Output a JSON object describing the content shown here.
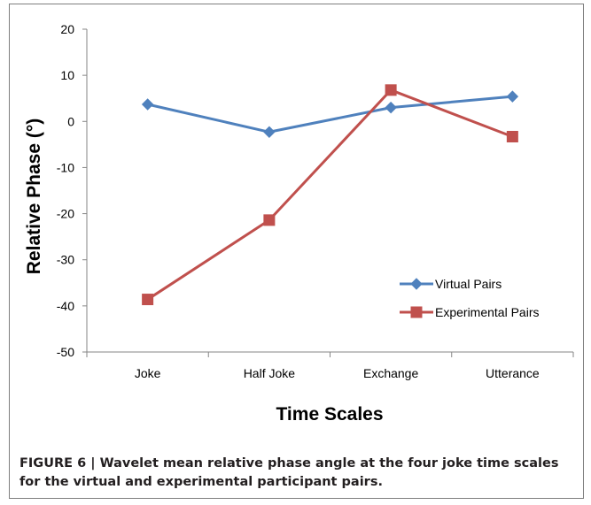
{
  "chart_data": {
    "type": "line",
    "categories": [
      "Joke",
      "Half Joke",
      "Exchange",
      "Utterance"
    ],
    "series": [
      {
        "name": "Virtual Pairs",
        "values": [
          3.7,
          -2.3,
          3.0,
          5.4
        ],
        "color": "#4f81bd",
        "marker": "diamond"
      },
      {
        "name": "Experimental Pairs",
        "values": [
          -38.6,
          -21.4,
          6.8,
          -3.3
        ],
        "color": "#c0504d",
        "marker": "square"
      }
    ],
    "title": "",
    "xlabel": "Time Scales",
    "ylabel": "Relative Phase (°)",
    "ylim": [
      -50,
      20
    ],
    "yticks": [
      "20",
      "10",
      "0",
      "-10",
      "-20",
      "-30",
      "-40",
      "-50"
    ],
    "grid": false,
    "legend_position": "lower-right"
  },
  "caption": {
    "label": "FIGURE 6",
    "separator": "|",
    "text": "Wavelet mean relative phase angle at the four joke time scales for the virtual and experimental participant pairs."
  }
}
